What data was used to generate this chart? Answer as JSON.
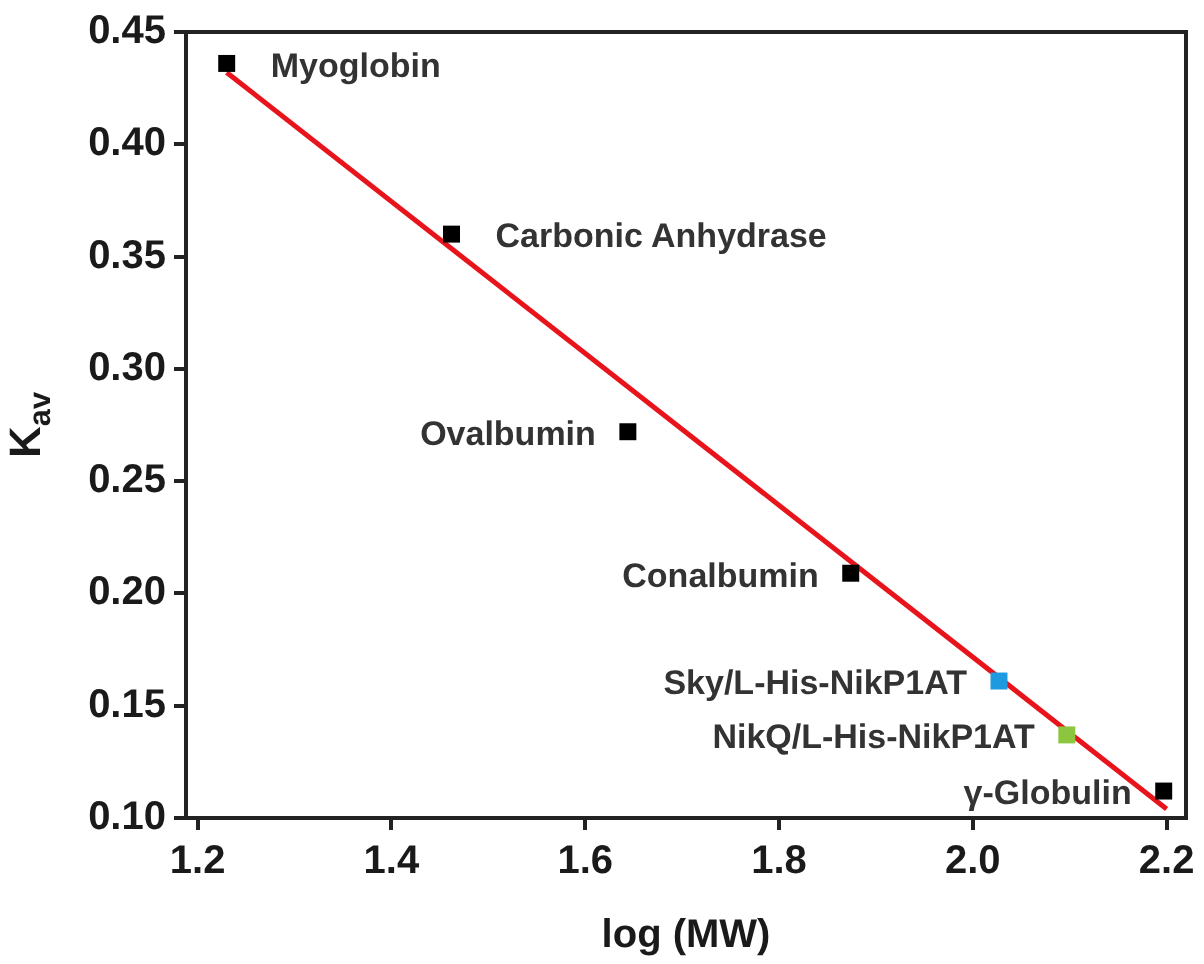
{
  "chart_data": {
    "type": "scatter",
    "xlabel": "log (MW)",
    "ylabel": "K$_{av}$",
    "xlim": [
      1.188,
      2.22
    ],
    "ylim": [
      0.1,
      0.45
    ],
    "xticks": [
      {
        "value": 1.2,
        "label": "1.2"
      },
      {
        "value": 1.4,
        "label": "1.4"
      },
      {
        "value": 1.6,
        "label": "1.6"
      },
      {
        "value": 1.8,
        "label": "1.8"
      },
      {
        "value": 2.0,
        "label": "2.0"
      },
      {
        "value": 2.2,
        "label": "2.2"
      }
    ],
    "yticks": [
      {
        "value": 0.1,
        "label": "0.10"
      },
      {
        "value": 0.15,
        "label": "0.15"
      },
      {
        "value": 0.2,
        "label": "0.20"
      },
      {
        "value": 0.25,
        "label": "0.25"
      },
      {
        "value": 0.3,
        "label": "0.30"
      },
      {
        "value": 0.35,
        "label": "0.35"
      },
      {
        "value": 0.4,
        "label": "0.40"
      },
      {
        "value": 0.45,
        "label": "0.45"
      }
    ],
    "grid": false,
    "legend": false,
    "series": [
      {
        "marker": "square",
        "x": [
          1.23,
          1.462,
          1.644,
          1.874,
          2.027,
          2.097,
          2.197
        ],
        "values": [
          0.436,
          0.36,
          0.272,
          0.209,
          0.161,
          0.137,
          0.112
        ],
        "colors": [
          "#000000",
          "#000000",
          "#000000",
          "#000000",
          "#1e9be0",
          "#8cc63f",
          "#000000"
        ]
      },
      {
        "type": "line",
        "x": [
          1.23,
          2.2
        ],
        "values": [
          0.432,
          0.104
        ],
        "color": "#e8141c",
        "line_style": "solid",
        "marker": "none"
      }
    ],
    "annotations": [
      {
        "text": "Myoglobin",
        "x": 1.23,
        "y": 0.436
      },
      {
        "text": "Carbonic Anhydrase",
        "x": 1.462,
        "y": 0.36
      },
      {
        "text": "Ovalbumin",
        "x": 1.644,
        "y": 0.272
      },
      {
        "text": "Conalbumin",
        "x": 1.874,
        "y": 0.209
      },
      {
        "text": "Sky/L-His-NikP1AT",
        "x": 2.027,
        "y": 0.161
      },
      {
        "text": "NikQ/L-His-NikP1AT",
        "x": 2.097,
        "y": 0.137
      },
      {
        "text": "γ-Globulin",
        "x": 2.197,
        "y": 0.112
      }
    ]
  }
}
